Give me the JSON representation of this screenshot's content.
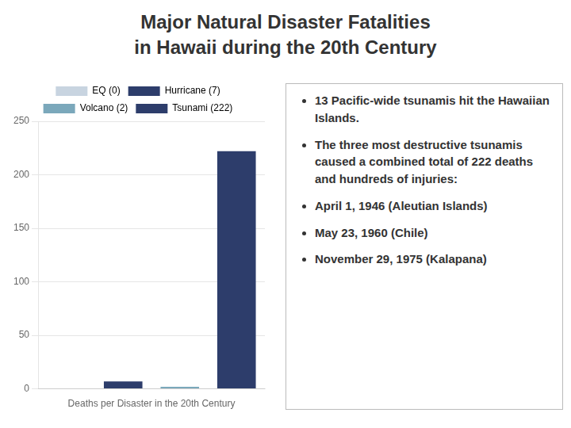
{
  "chart_data": {
    "type": "bar",
    "title": [
      "Major Natural Disaster Fatalities",
      "in Hawaii during the 20th Century"
    ],
    "categories": [
      "EQ (0)",
      "Hurricane (7)",
      "Volcano (2)",
      "Tsunami (222)"
    ],
    "values": [
      0,
      7,
      2,
      222
    ],
    "colors": [
      "#c8d4e0",
      "#2d3d6b",
      "#7ba8bb",
      "#2d3d6b"
    ],
    "xlabel": "Deaths per Disaster in the 20th Century",
    "ylim": [
      0,
      250
    ],
    "yticks": [
      0,
      50,
      100,
      150,
      200,
      250
    ],
    "grid": true,
    "legend": "top",
    "tick_labels": "y",
    "annotations": [
      "13 Pacific-wide tsunamis hit the Hawaiian Islands.",
      "The three most destructive tsunamis caused a combined total of 222 deaths and hundreds of injuries:",
      "April 1, 1946 (Aleutian Islands)",
      "May 23, 1960 (Chile)",
      "November 29, 1975 (Kalapana)"
    ]
  }
}
